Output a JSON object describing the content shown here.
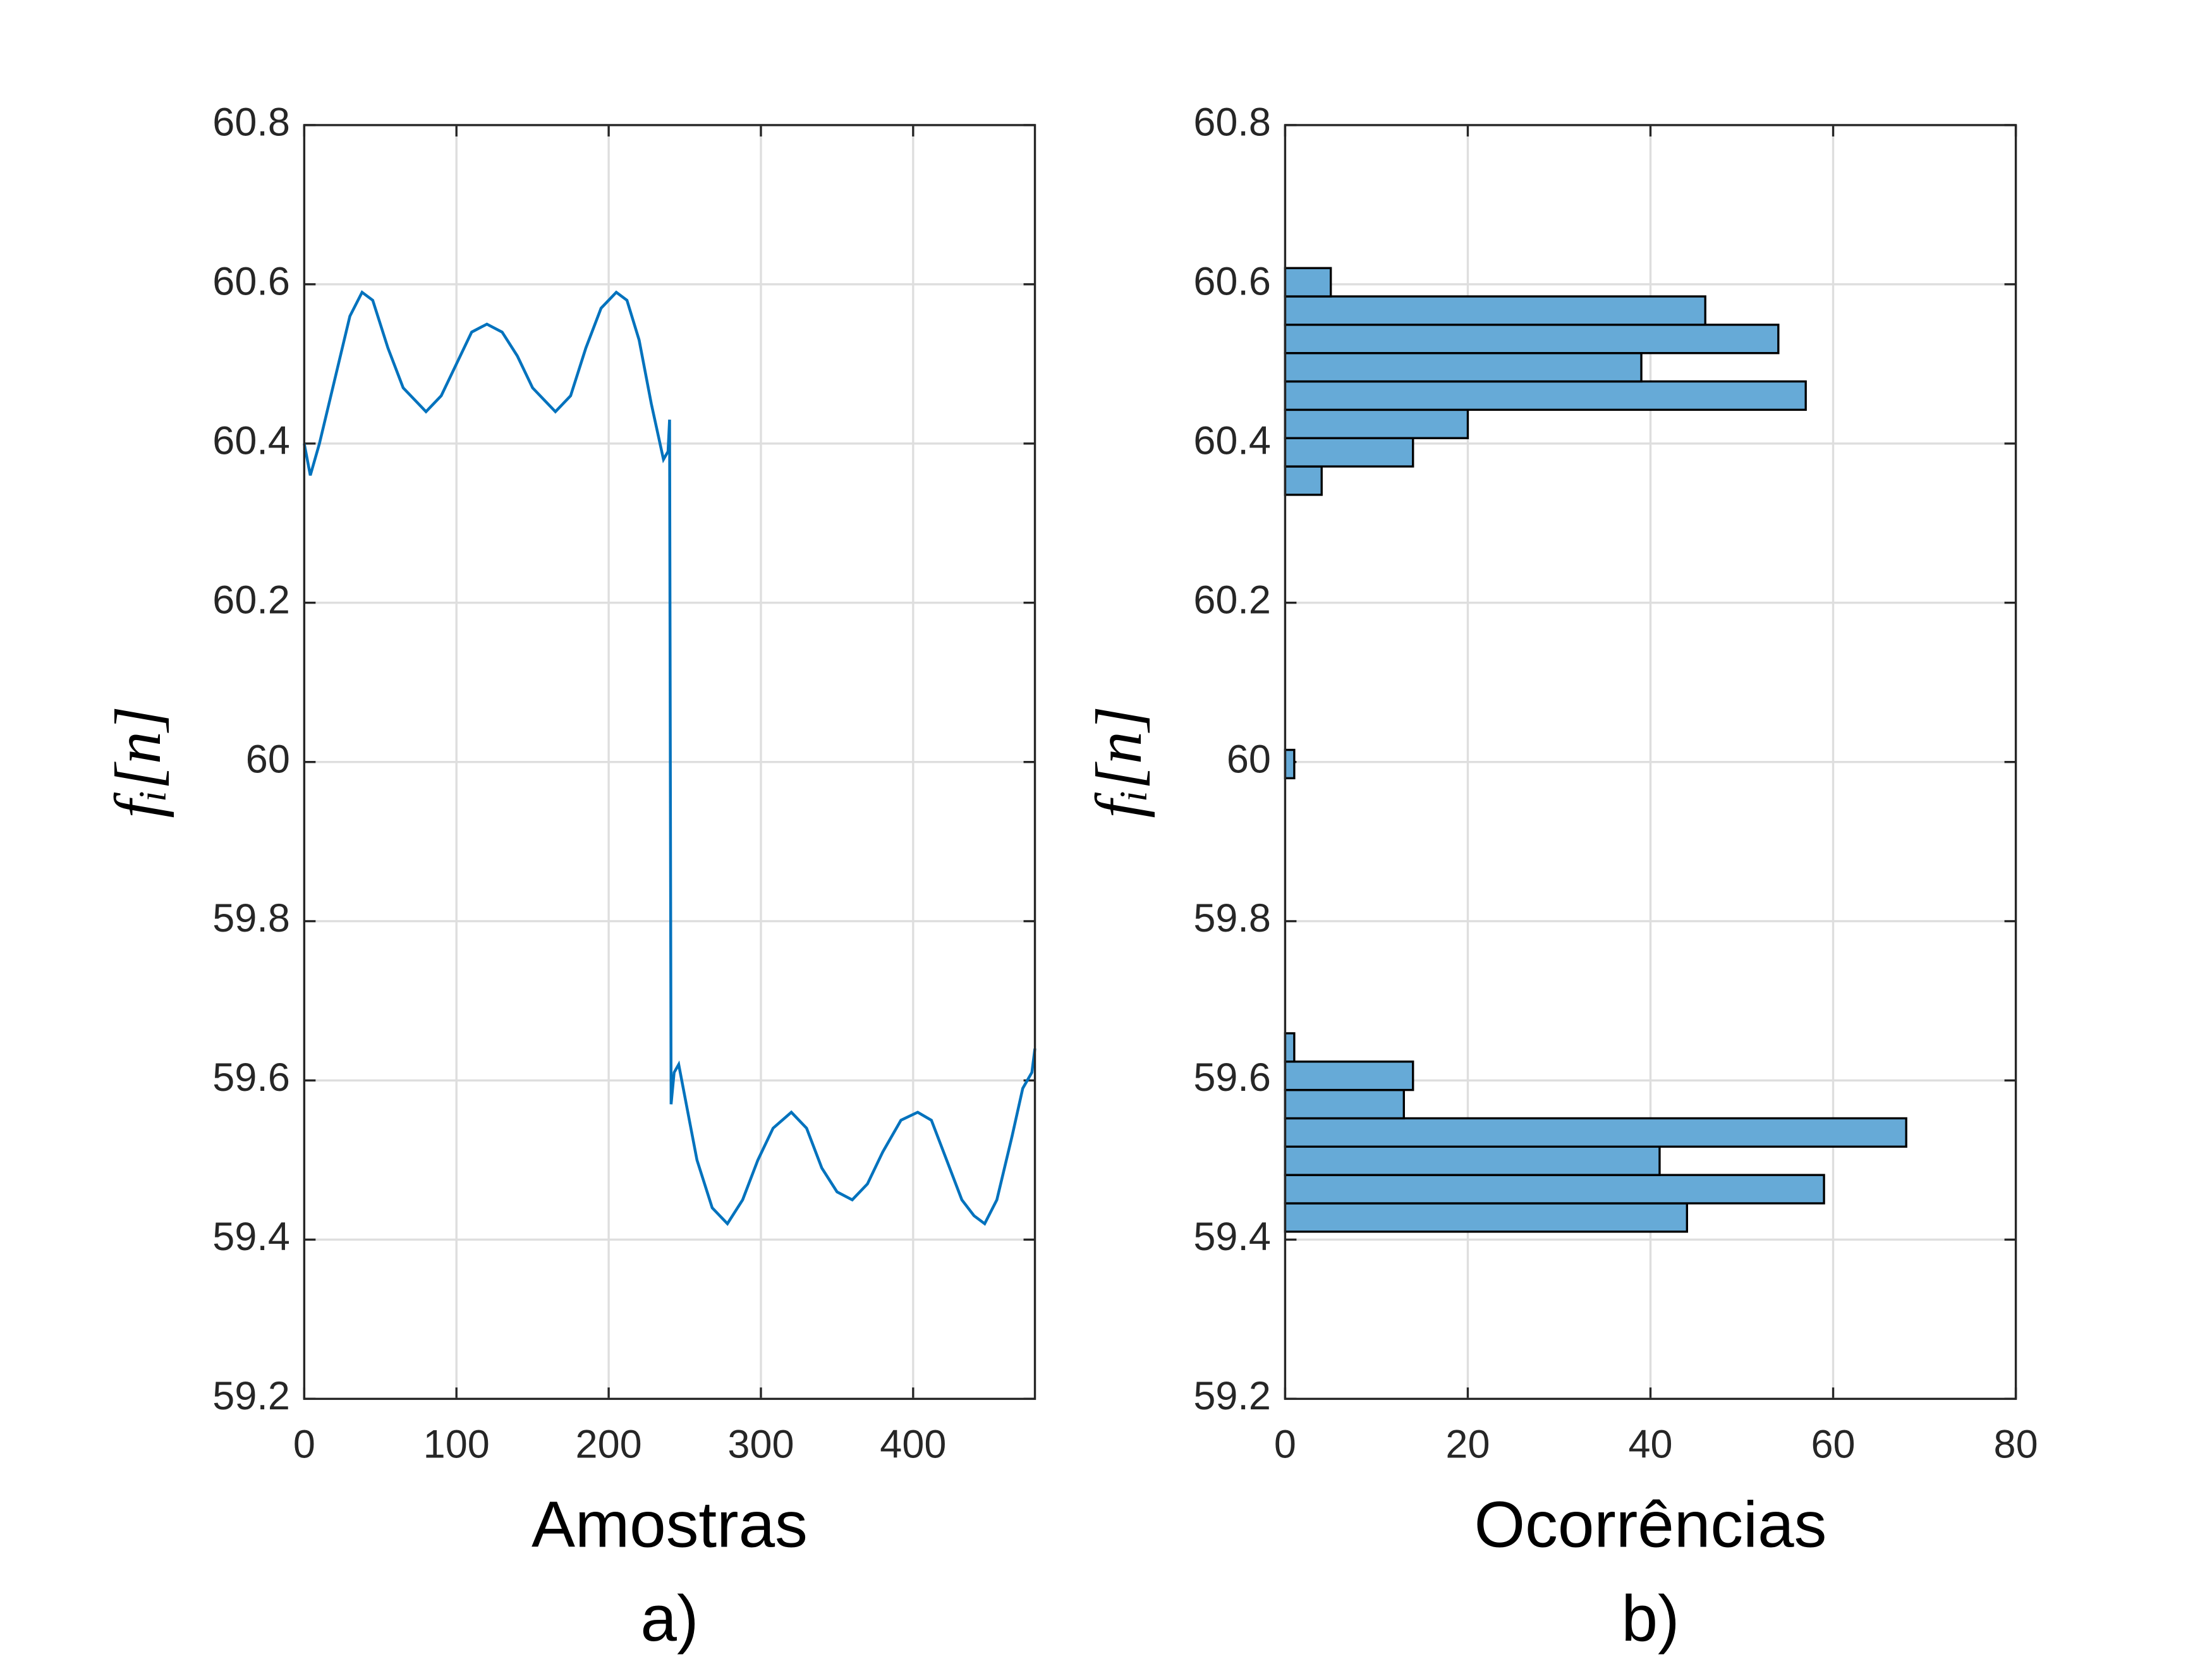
{
  "chart_data": [
    {
      "type": "line",
      "xlabel": "Amostras",
      "ylabel": "fᵢ[n]",
      "caption": "a)",
      "xlim": [
        0,
        480
      ],
      "ylim": [
        59.2,
        60.8
      ],
      "xticks": [
        0,
        100,
        200,
        300,
        400
      ],
      "yticks": [
        59.2,
        59.4,
        59.6,
        59.8,
        60,
        60.2,
        60.4,
        60.6,
        60.8
      ],
      "grid": true,
      "series": [
        {
          "color": "#0072bd",
          "x": [
            0,
            4,
            10,
            20,
            30,
            38,
            45,
            55,
            65,
            80,
            90,
            100,
            110,
            120,
            130,
            140,
            150,
            165,
            175,
            185,
            195,
            205,
            212,
            220,
            228,
            236,
            239,
            240,
            241,
            243,
            246,
            250,
            258,
            268,
            278,
            288,
            298,
            308,
            320,
            330,
            340,
            350,
            360,
            370,
            380,
            392,
            403,
            412,
            422,
            432,
            440,
            447,
            455,
            465,
            472,
            478,
            480
          ],
          "values": [
            60.4,
            60.36,
            60.4,
            60.48,
            60.56,
            60.59,
            60.58,
            60.52,
            60.47,
            60.44,
            60.46,
            60.5,
            60.54,
            60.55,
            60.54,
            60.51,
            60.47,
            60.44,
            60.46,
            60.52,
            60.57,
            60.59,
            60.58,
            60.53,
            60.45,
            60.38,
            60.39,
            60.43,
            59.57,
            59.61,
            59.62,
            59.58,
            59.5,
            59.44,
            59.42,
            59.45,
            59.5,
            59.54,
            59.56,
            59.54,
            59.49,
            59.46,
            59.45,
            59.47,
            59.51,
            59.55,
            59.56,
            59.55,
            59.5,
            59.45,
            59.43,
            59.42,
            59.45,
            59.53,
            59.59,
            59.61,
            59.64
          ]
        }
      ]
    },
    {
      "type": "histogram",
      "xlabel": "Ocorrências",
      "ylabel": "fᵢ[n]",
      "caption": "b)",
      "xlim": [
        0,
        80
      ],
      "ylim": [
        59.2,
        60.8
      ],
      "xticks": [
        0,
        20,
        40,
        60,
        80
      ],
      "yticks": [
        59.2,
        59.4,
        59.6,
        59.8,
        60,
        60.2,
        60.4,
        60.6,
        60.8
      ],
      "grid": true,
      "color": "#66aad7",
      "edgecolor": "#000000",
      "bins": [
        59.41,
        59.4456,
        59.4812,
        59.5168,
        59.5524,
        59.588,
        59.6236,
        59.6592,
        59.6948,
        59.7304,
        59.766,
        59.8016,
        59.8372,
        59.8728,
        59.9084,
        59.944,
        59.9796,
        60.0152,
        60.0508,
        60.0864,
        60.122,
        60.1576,
        60.1932,
        60.2288,
        60.2644,
        60.3,
        60.3356,
        60.3712,
        60.4068,
        60.4424,
        60.478,
        60.5136,
        60.5492,
        60.5848,
        60.6204
      ],
      "values": [
        44,
        59,
        41,
        68,
        13,
        14,
        1,
        0,
        0,
        0,
        0,
        0,
        0,
        0,
        0,
        0,
        1,
        0,
        0,
        0,
        0,
        0,
        0,
        0,
        0,
        0,
        4,
        14,
        20,
        57,
        39,
        54,
        46,
        5
      ]
    }
  ]
}
